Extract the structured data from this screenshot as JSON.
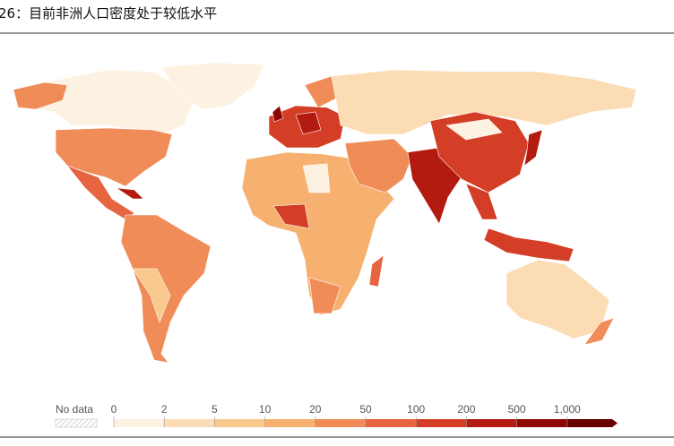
{
  "title": "26：目前非洲人口密度处于较低水平",
  "legend": {
    "no_data_label": "No data",
    "ticks": [
      0,
      2,
      5,
      10,
      20,
      50,
      100,
      200,
      500,
      {
        "value": 1000,
        "label": "1,000"
      }
    ],
    "colors": [
      "#fdf1e2",
      "#fbdcb4",
      "#f9c98e",
      "#f6b170",
      "#f08c58",
      "#e6643f",
      "#d43d26",
      "#b31a10",
      "#8f0606",
      "#6b0000"
    ]
  }
}
